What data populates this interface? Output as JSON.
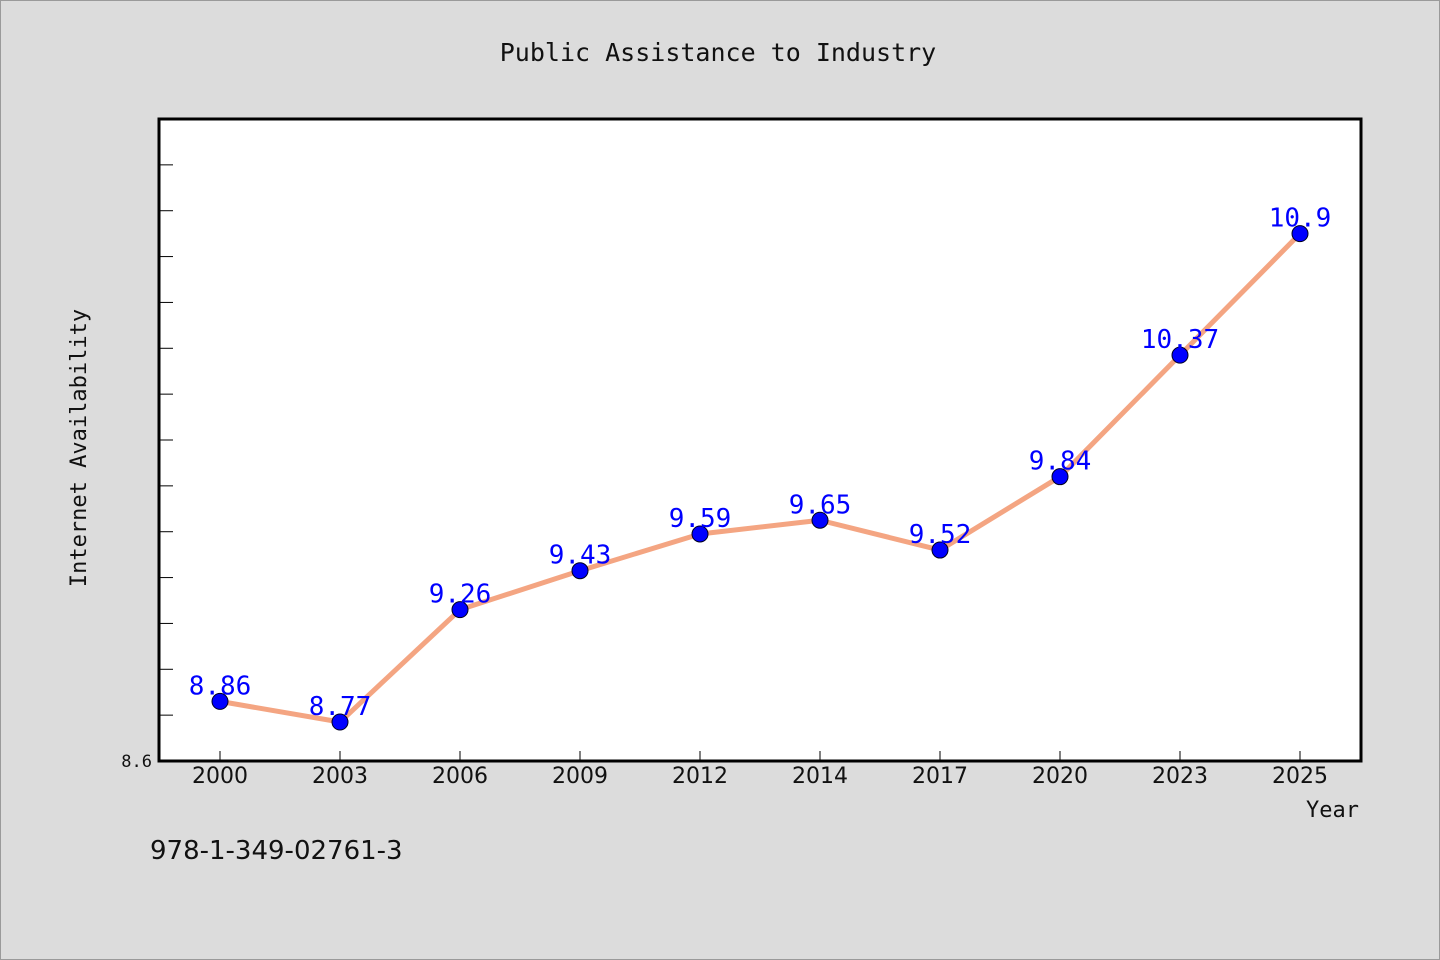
{
  "chart_data": {
    "type": "line",
    "title": "Public Assistance to Industry",
    "xlabel": "Year",
    "ylabel": "Internet Availability",
    "categories": [
      "2000",
      "2003",
      "2006",
      "2009",
      "2012",
      "2014",
      "2017",
      "2020",
      "2023",
      "2025"
    ],
    "series": [
      {
        "values": [
          8.86,
          8.77,
          9.26,
          9.43,
          9.59,
          9.65,
          9.52,
          9.84,
          10.37,
          10.9
        ]
      }
    ],
    "data_labels": [
      "8.86",
      "8.77",
      "9.26",
      "9.43",
      "9.59",
      "9.65",
      "9.52",
      "9.84",
      "10.37",
      "10.9"
    ],
    "ylim": [
      8.6,
      11.4
    ],
    "y_tick_label": "8.6",
    "grid": false,
    "line_color": "#f4a582",
    "marker_color": "#0000ff",
    "label_color": "#0000ff"
  },
  "footer": {
    "code": "978-1-349-02761-3"
  }
}
